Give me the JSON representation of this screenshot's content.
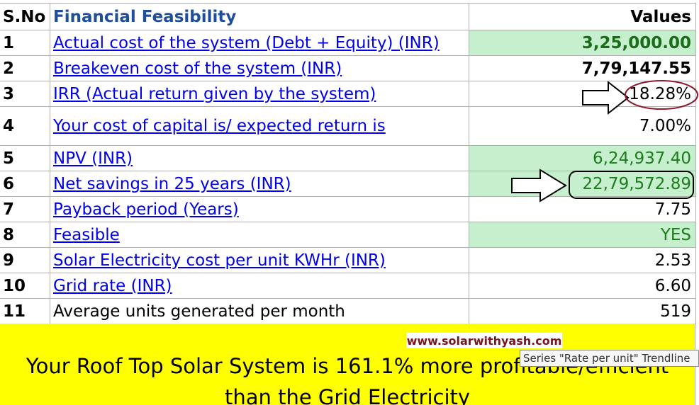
{
  "header": {
    "sno": "S.No",
    "title": "Financial Feasibility",
    "values": "Values"
  },
  "rows": [
    [
      "1",
      "Actual cost of the system (Debt + Equity) (INR)",
      "3,25,000.00"
    ],
    [
      "2",
      "Breakeven cost of the system (INR)",
      "7,79,147.55"
    ],
    [
      "3",
      "IRR (Actual return given by the system)",
      "18.28%"
    ],
    [
      "4",
      "Your cost of capital is/ expected return is ",
      "7.00%"
    ],
    [
      "5",
      "NPV (INR)",
      "6,24,937.40"
    ],
    [
      "6",
      "Net savings in 25 years (INR)",
      "22,79,572.89"
    ],
    [
      "7",
      "Payback period (Years)",
      "7.75"
    ],
    [
      "8",
      "Feasible",
      "YES"
    ],
    [
      "9",
      "Solar Electricity cost per unit KWHr (INR)",
      "2.53"
    ],
    [
      "10",
      "Grid rate (INR)",
      "6.60"
    ],
    [
      "11",
      "Average units generated per month",
      "519"
    ]
  ],
  "banner": {
    "text": "Your Roof Top Solar System is 161.1% more profitable/efficient than the Grid Electricity",
    "watermark": "www.solarwithyash.com",
    "tooltip": "Series \"Rate per unit\" Trendline"
  }
}
